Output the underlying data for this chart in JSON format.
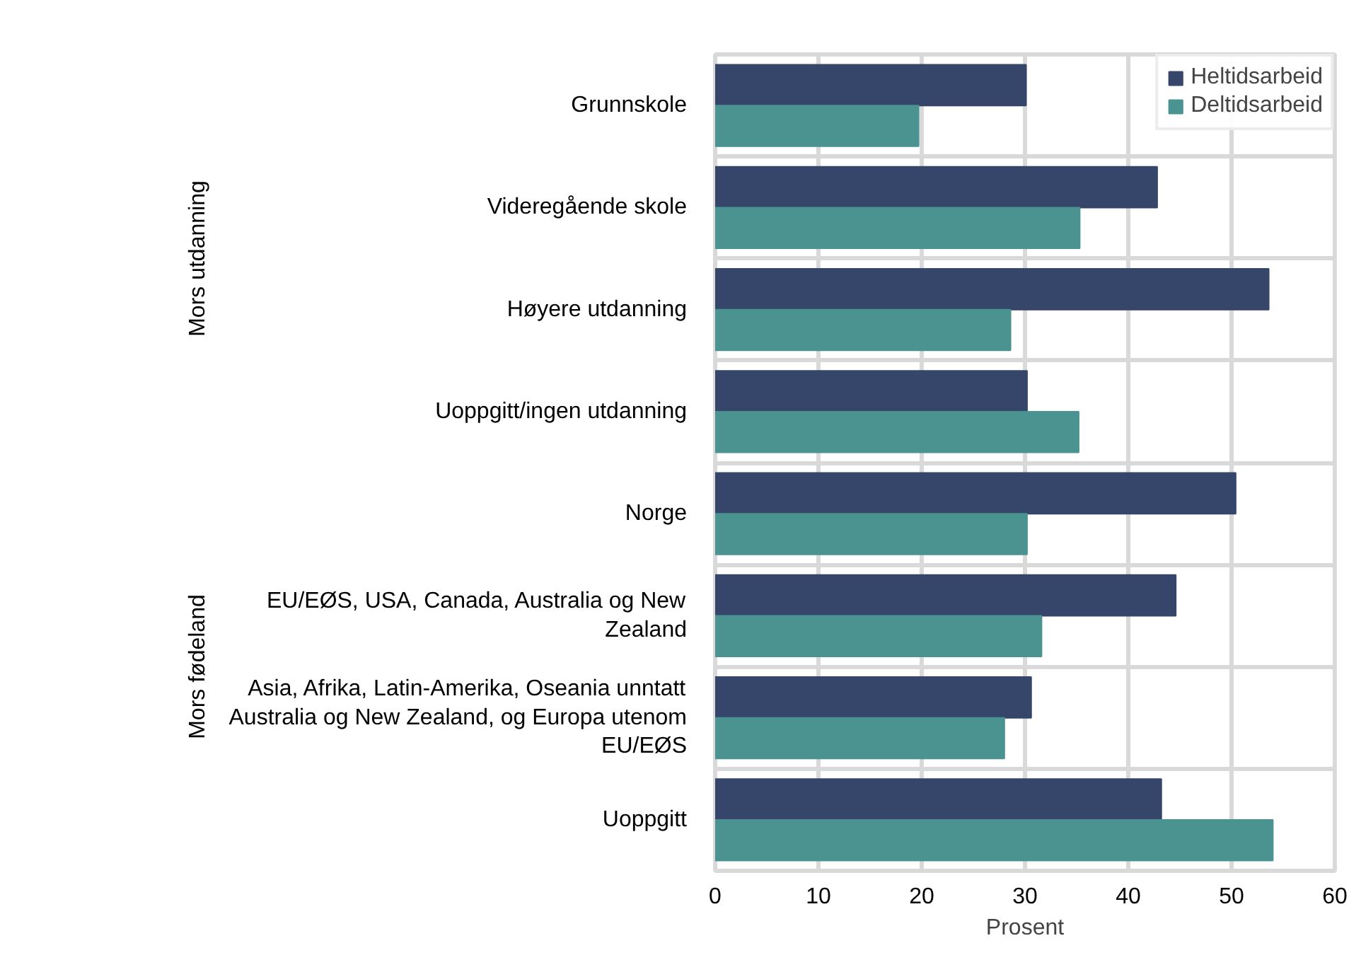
{
  "chart_data": {
    "type": "bar",
    "orientation": "horizontal",
    "xlabel": "Prosent",
    "categories": [
      "Grunnskole",
      "Videregående skole",
      "Høyere utdanning",
      "Uoppgitt/ingen utdanning",
      "Norge",
      "EU/EØS, USA, Canada, Australia og New\nZealand",
      "Asia, Afrika, Latin-Amerika, Oseania unntatt\nAustralia og New Zealand, og Europa utenom\nEU/EØS",
      "Uoppgitt"
    ],
    "series": [
      {
        "name": "Heltidsarbeid",
        "color": "#35466a",
        "values": [
          30.1,
          42.8,
          53.6,
          30.2,
          50.4,
          44.6,
          30.6,
          43.2
        ]
      },
      {
        "name": "Deltidsarbeid",
        "color": "#4b9391",
        "values": [
          19.7,
          35.3,
          28.6,
          35.2,
          30.2,
          31.6,
          28.0,
          54.0
        ]
      }
    ],
    "xlim": [
      0,
      60
    ],
    "xticks": [
      0,
      10,
      20,
      30,
      40,
      50,
      60
    ],
    "grid": true,
    "legend": "top right",
    "annotations": [
      "Mors utdanning",
      "Mors fødeland"
    ]
  }
}
